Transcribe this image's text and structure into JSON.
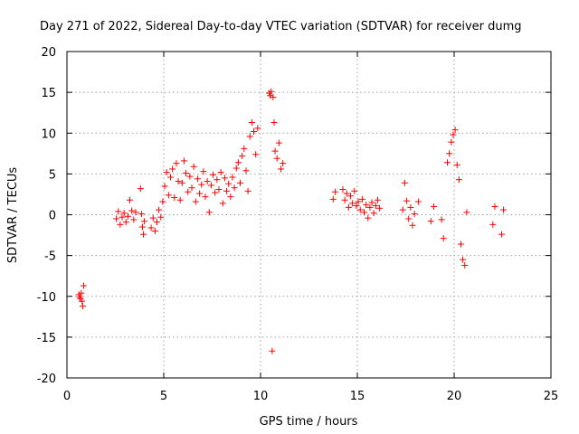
{
  "chart_data": {
    "type": "scatter",
    "title": "Day 271 of 2022, Sidereal Day-to-day VTEC variation (SDTVAR) for receiver dumg",
    "xlabel": "GPS time / hours",
    "ylabel": "SDTVAR / TECUs",
    "xlim": [
      0,
      25
    ],
    "ylim": [
      -20,
      20
    ],
    "xticks": [
      0,
      5,
      10,
      15,
      20,
      25
    ],
    "yticks": [
      -20,
      -15,
      -10,
      -5,
      0,
      5,
      10,
      15,
      20
    ],
    "grid": true,
    "marker": "+",
    "color": "#ff0000",
    "series": [
      {
        "name": "SDTVAR",
        "x": [
          0.62,
          0.66,
          0.7,
          0.74,
          0.78,
          0.82,
          0.86,
          2.55,
          2.65,
          2.75,
          2.85,
          2.95,
          3.05,
          3.15,
          3.25,
          3.35,
          3.45,
          3.55,
          3.8,
          3.85,
          3.9,
          3.95,
          4.0,
          4.35,
          4.45,
          4.55,
          4.65,
          4.75,
          4.85,
          4.95,
          5.05,
          5.15,
          5.25,
          5.35,
          5.45,
          5.55,
          5.65,
          5.75,
          5.85,
          5.95,
          6.05,
          6.15,
          6.25,
          6.35,
          6.45,
          6.55,
          6.65,
          6.75,
          6.85,
          6.95,
          7.05,
          7.15,
          7.25,
          7.35,
          7.45,
          7.55,
          7.65,
          7.75,
          7.85,
          7.95,
          8.05,
          8.15,
          8.25,
          8.35,
          8.45,
          8.55,
          8.65,
          8.75,
          8.85,
          8.95,
          9.05,
          9.15,
          9.25,
          9.35,
          9.45,
          9.55,
          9.65,
          9.75,
          9.85,
          10.45,
          10.5,
          10.55,
          10.6,
          10.65,
          10.7,
          10.75,
          10.85,
          10.95,
          11.05,
          11.15,
          13.75,
          13.85,
          14.25,
          14.35,
          14.45,
          14.55,
          14.65,
          14.75,
          14.85,
          14.95,
          15.05,
          15.15,
          15.25,
          15.35,
          15.45,
          15.55,
          15.65,
          15.75,
          15.85,
          15.95,
          16.05,
          16.15,
          17.35,
          17.45,
          17.55,
          17.65,
          17.75,
          17.85,
          17.95,
          18.15,
          18.8,
          18.95,
          19.35,
          19.45,
          19.65,
          19.75,
          19.85,
          19.95,
          20.05,
          20.15,
          20.25,
          20.35,
          20.45,
          20.55,
          20.65,
          22.0,
          22.1,
          22.45,
          22.55
        ],
        "y": [
          -9.8,
          -10.1,
          -10.3,
          -9.6,
          -10.6,
          -11.2,
          -8.7,
          -0.5,
          0.4,
          -1.2,
          -0.3,
          0.2,
          -0.9,
          -0.2,
          1.8,
          0.5,
          -0.6,
          0.3,
          3.2,
          0.1,
          -1.5,
          -2.4,
          -0.8,
          -1.6,
          -0.4,
          -2.0,
          -0.9,
          0.6,
          -0.3,
          1.6,
          3.5,
          5.2,
          2.4,
          4.6,
          5.6,
          2.1,
          6.3,
          4.1,
          1.8,
          3.9,
          6.6,
          5.1,
          2.8,
          4.7,
          3.3,
          5.9,
          1.6,
          4.4,
          2.6,
          3.7,
          5.3,
          2.2,
          4.1,
          0.3,
          3.6,
          4.9,
          2.7,
          4.3,
          3.1,
          5.2,
          1.4,
          4.5,
          2.9,
          3.8,
          2.2,
          4.6,
          3.3,
          5.7,
          6.4,
          3.9,
          7.2,
          8.1,
          5.4,
          2.9,
          9.6,
          11.3,
          10.2,
          7.4,
          10.6,
          14.9,
          14.6,
          15.1,
          -16.7,
          14.4,
          11.3,
          7.8,
          6.9,
          8.8,
          5.6,
          6.3,
          1.9,
          2.8,
          3.1,
          1.8,
          2.6,
          0.9,
          2.3,
          1.4,
          2.9,
          1.1,
          1.6,
          0.6,
          1.9,
          0.3,
          1.2,
          -0.4,
          0.9,
          1.5,
          0.2,
          1.1,
          1.8,
          0.8,
          0.6,
          3.9,
          1.7,
          -0.5,
          0.9,
          -1.3,
          0.1,
          1.6,
          -0.8,
          1.0,
          -0.6,
          -2.9,
          6.4,
          7.5,
          8.9,
          9.8,
          10.4,
          6.1,
          4.3,
          -3.6,
          -5.5,
          -6.2,
          0.3,
          -1.2,
          1.0,
          -2.4,
          0.6
        ]
      }
    ]
  }
}
